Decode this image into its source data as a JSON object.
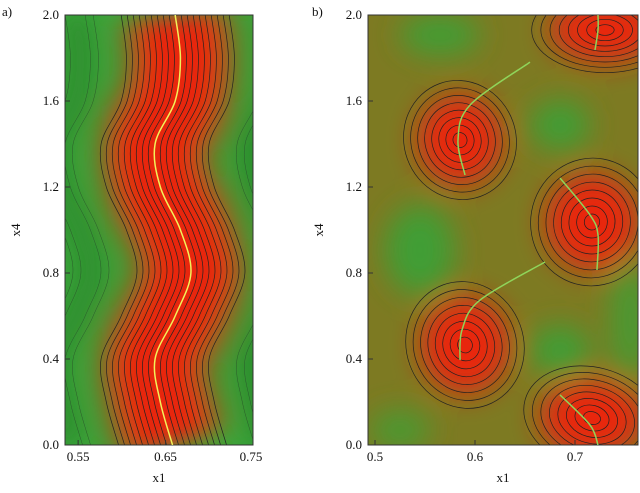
{
  "chart_data": [
    {
      "type": "contour",
      "title": "a)",
      "xlabel": "x1",
      "ylabel": "x4",
      "xlim": [
        0.535,
        0.75
      ],
      "ylim": [
        0,
        2
      ],
      "xticks": [
        0.55,
        0.65,
        0.75
      ],
      "yticks": [
        {
          "value": 0,
          "label": "0.0"
        },
        0.4,
        0.8,
        1.2,
        1.6,
        {
          "value": 2,
          "label": "2.0"
        }
      ],
      "series": [
        {
          "color": "#f2f25a",
          "x": [
            0.658,
            0.644,
            0.638,
            0.661,
            0.679,
            0.667,
            0.644,
            0.638,
            0.661,
            0.667,
            0.661
          ],
          "y": [
            0,
            0.2,
            0.4,
            0.6,
            0.8,
            1.0,
            1.2,
            1.4,
            1.6,
            1.8,
            2.0
          ]
        }
      ]
    },
    {
      "type": "contour",
      "title": "b)",
      "xlabel": "x1",
      "ylabel": "x4",
      "xlim": [
        0.493,
        0.763
      ],
      "ylim": [
        0,
        2
      ],
      "xticks": [
        0.5,
        0.6,
        0.7
      ],
      "yticks": [
        {
          "value": 0,
          "label": "0.0"
        },
        0.4,
        0.8,
        1.2,
        1.6,
        {
          "value": 2,
          "label": "2.0"
        }
      ],
      "series": [
        {
          "color": "#8fd45a",
          "x": [
            0.59,
            0.583,
            0.595,
            0.655
          ],
          "y": [
            1.256,
            1.419,
            1.581,
            1.781
          ]
        },
        {
          "color": "#8fd45a",
          "x": [
            0.723,
            0.723,
            0.72
          ],
          "y": [
            2.0,
            1.93,
            1.837
          ]
        },
        {
          "color": "#8fd45a",
          "x": [
            0.685,
            0.715,
            0.723,
            0.722
          ],
          "y": [
            1.242,
            1.07,
            0.977,
            0.814
          ]
        },
        {
          "color": "#8fd45a",
          "x": [
            0.585,
            0.587,
            0.605,
            0.67
          ],
          "y": [
            0.395,
            0.535,
            0.674,
            0.851
          ]
        },
        {
          "color": "#8fd45a",
          "x": [
            0.685,
            0.715,
            0.723
          ],
          "y": [
            0.233,
            0.093,
            0.0
          ]
        }
      ]
    }
  ]
}
